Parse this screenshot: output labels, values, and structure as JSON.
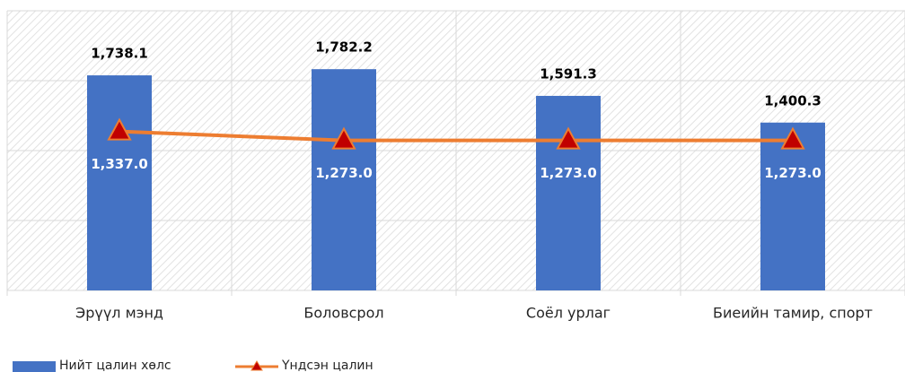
{
  "chart_data": {
    "type": "bar-line",
    "categories": [
      "Эрүүл мэнд",
      "Боловсрол",
      "Соёл урлаг",
      "Биеийн тамир, спорт"
    ],
    "series": [
      {
        "name": "Нийт цалин хөлс",
        "type": "bar",
        "color": "#4472c4",
        "values": [
          1738.1,
          1782.2,
          1591.3,
          1400.3
        ],
        "value_labels": [
          "1,738.1",
          "1,782.2",
          "1,591.3",
          "1,400.3"
        ]
      },
      {
        "name": "Үндсэн цалин",
        "type": "line",
        "color": "#ed7d31",
        "marker_color": "#c00000",
        "values": [
          1337.0,
          1273.0,
          1273.0,
          1273.0
        ],
        "value_labels": [
          "1,337.0",
          "1,273.0",
          "1,273.0",
          "1,273.0"
        ]
      }
    ],
    "ylim": [
      200,
      2200
    ],
    "yticks": [
      200,
      700,
      1200,
      1700,
      2200
    ],
    "grid": true,
    "legend": "bottom-left"
  }
}
